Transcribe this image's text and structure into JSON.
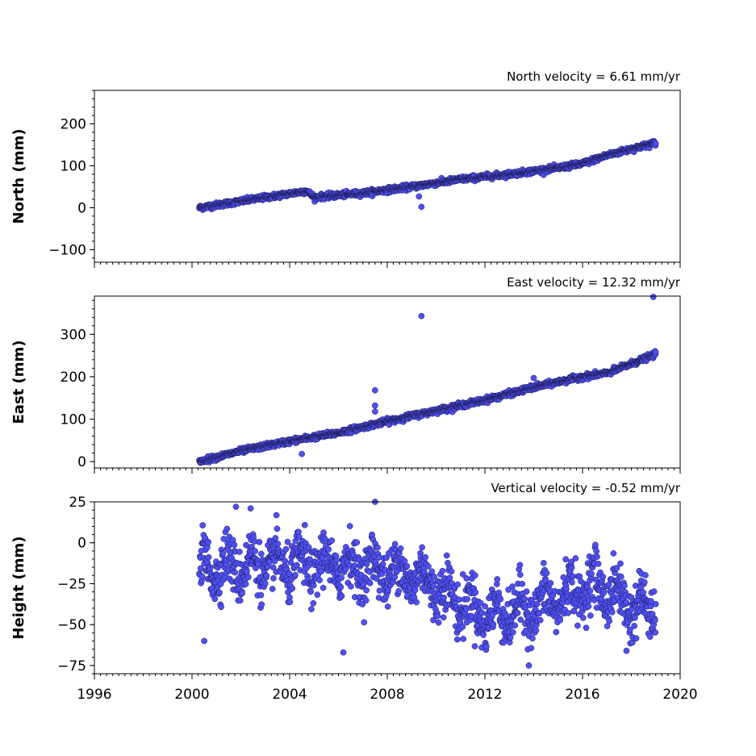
{
  "colors": {
    "marker_fill": "#4f4ff5",
    "marker_edge": "#1a1a4a",
    "axis": "#000000"
  },
  "chart_data": [
    {
      "type": "scatter",
      "title": "North velocity = 6.61 mm/yr",
      "ylabel": "North (mm)",
      "xlim": [
        1996,
        2020
      ],
      "ylim": [
        -130,
        280
      ],
      "yticks": [
        -100,
        0,
        100,
        200
      ],
      "ytick_labels": [
        "−100",
        "0",
        "100",
        "200"
      ],
      "trend": {
        "start_year": 2000.3,
        "end_year": 2019.0,
        "velocity_mm_per_yr": 6.61
      },
      "profile": [
        [
          2000.3,
          0
        ],
        [
          2004.7,
          40
        ],
        [
          2005.0,
          25
        ],
        [
          2007.0,
          35
        ],
        [
          2009.0,
          50
        ],
        [
          2011.0,
          68
        ],
        [
          2013.0,
          80
        ],
        [
          2015.0,
          95
        ],
        [
          2016.0,
          105
        ],
        [
          2017.0,
          125
        ],
        [
          2019.0,
          155
        ]
      ],
      "outliers": [
        [
          2009.4,
          2
        ],
        [
          2009.3,
          27
        ]
      ],
      "noise_mm": 3
    },
    {
      "type": "scatter",
      "title": "East velocity = 12.32 mm/yr",
      "ylabel": "East (mm)",
      "xlim": [
        1996,
        2020
      ],
      "ylim": [
        -15,
        390
      ],
      "yticks": [
        0,
        100,
        200,
        300
      ],
      "ytick_labels": [
        "0",
        "100",
        "200",
        "300"
      ],
      "trend": {
        "start_year": 2000.3,
        "end_year": 2019.0,
        "velocity_mm_per_yr": 12.32
      },
      "profile": [
        [
          2000.3,
          0
        ],
        [
          2002.0,
          25
        ],
        [
          2004.0,
          48
        ],
        [
          2006.0,
          68
        ],
        [
          2008.0,
          95
        ],
        [
          2010.0,
          120
        ],
        [
          2012.0,
          145
        ],
        [
          2014.0,
          175
        ],
        [
          2016.0,
          200
        ],
        [
          2017.0,
          208
        ],
        [
          2019.0,
          253
        ]
      ],
      "outliers": [
        [
          2009.4,
          343
        ],
        [
          2007.5,
          168
        ],
        [
          2007.5,
          132
        ],
        [
          2007.5,
          118
        ],
        [
          2004.5,
          18
        ],
        [
          2018.9,
          388
        ],
        [
          2014.0,
          197
        ]
      ],
      "noise_mm": 3
    },
    {
      "type": "scatter",
      "title": "Vertical velocity = -0.52 mm/yr",
      "ylabel": "Height (mm)",
      "xlim": [
        1996,
        2020
      ],
      "ylim": [
        -80,
        25
      ],
      "yticks": [
        -75,
        -50,
        -25,
        0,
        25
      ],
      "ytick_labels": [
        "−75",
        "−50",
        "−25",
        "0",
        "25"
      ],
      "trend": {
        "start_year": 2000.3,
        "end_year": 2019.0,
        "velocity_mm_per_yr": -0.52
      },
      "profile": [
        [
          2000.3,
          -15
        ],
        [
          2003.0,
          -14
        ],
        [
          2006.0,
          -14
        ],
        [
          2008.0,
          -17
        ],
        [
          2009.5,
          -22
        ],
        [
          2010.5,
          -32
        ],
        [
          2012.0,
          -45
        ],
        [
          2014.0,
          -40
        ],
        [
          2016.5,
          -25
        ],
        [
          2018.0,
          -38
        ],
        [
          2019.0,
          -42
        ]
      ],
      "seasonal_amplitude_mm": 10,
      "outliers": [
        [
          2000.5,
          -60
        ],
        [
          2006.2,
          -67
        ],
        [
          2013.8,
          -75
        ],
        [
          2007.5,
          25
        ],
        [
          2001.8,
          22
        ],
        [
          2002.4,
          21
        ],
        [
          2017.8,
          -66
        ]
      ],
      "noise_mm": 8
    }
  ],
  "xaxis": {
    "ticks": [
      1996,
      2000,
      2004,
      2008,
      2012,
      2016,
      2020
    ],
    "tick_labels": [
      "1996",
      "2000",
      "2004",
      "2008",
      "2012",
      "2016",
      "2020"
    ],
    "minor_step_years": 0.25
  }
}
